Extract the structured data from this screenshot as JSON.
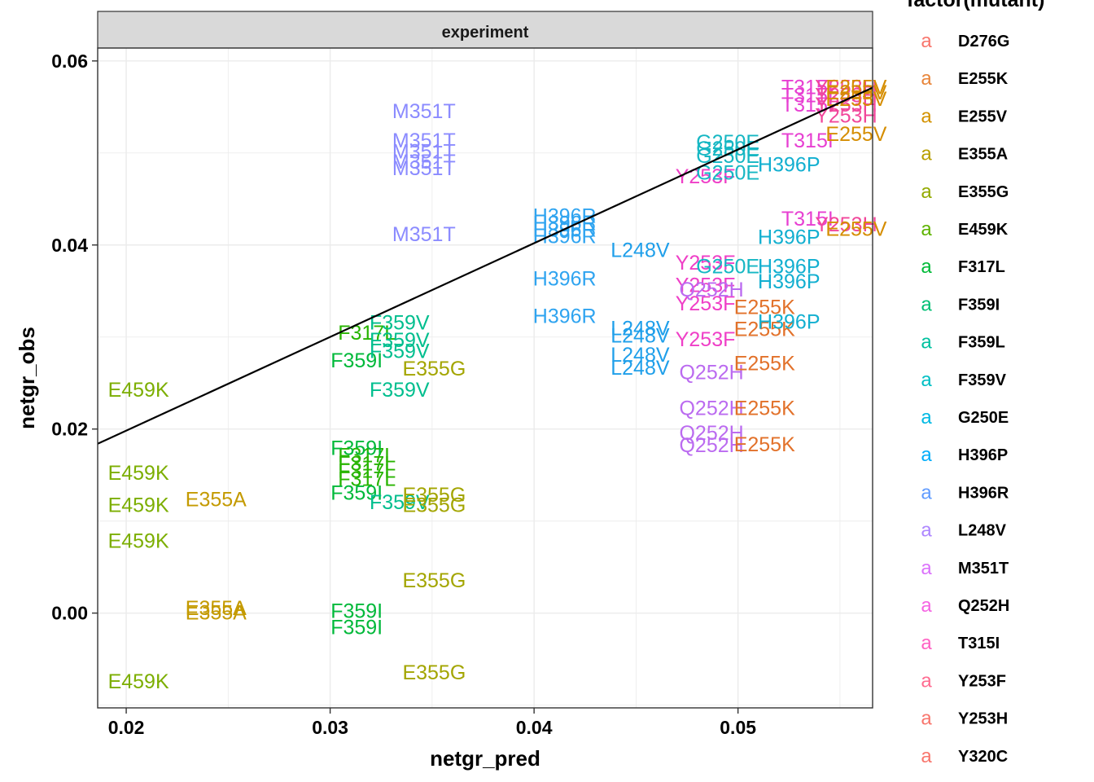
{
  "chart_data": {
    "type": "scatter",
    "label_mode": "text",
    "facet_label": "experiment",
    "xlabel": "netgr_pred",
    "ylabel": "netgr_obs",
    "xlim": [
      0.0186,
      0.0566
    ],
    "ylim": [
      -0.0103,
      0.0614
    ],
    "x_ticks": [
      0.02,
      0.03,
      0.04,
      0.05
    ],
    "x_tick_labels": [
      "0.02",
      "0.03",
      "0.04",
      "0.05"
    ],
    "y_ticks": [
      0.0,
      0.02,
      0.04,
      0.06
    ],
    "y_tick_labels": [
      "0.00",
      "0.02",
      "0.04",
      "0.06"
    ],
    "grid": true,
    "fit_line": {
      "x": [
        0.0186,
        0.0566
      ],
      "y": [
        0.0184,
        0.0571
      ]
    },
    "legend": {
      "title": "factor(mutant)",
      "key_glyph": "a",
      "placement": "right",
      "entries": [
        {
          "name": "D276G",
          "color": "#F8766D"
        },
        {
          "name": "E255K",
          "color": "#E8853A"
        },
        {
          "name": "E255V",
          "color": "#D39200"
        },
        {
          "name": "E355A",
          "color": "#B79F00"
        },
        {
          "name": "E355G",
          "color": "#93AA00"
        },
        {
          "name": "E459K",
          "color": "#5EB300"
        },
        {
          "name": "F317L",
          "color": "#00BA38"
        },
        {
          "name": "F359I",
          "color": "#00BF74"
        },
        {
          "name": "F359L",
          "color": "#00C19F"
        },
        {
          "name": "F359V",
          "color": "#00BFC4"
        },
        {
          "name": "G250E",
          "color": "#00B9E3"
        },
        {
          "name": "H396P",
          "color": "#00ADFA"
        },
        {
          "name": "H396R",
          "color": "#619CFF"
        },
        {
          "name": "L248V",
          "color": "#AE87FF"
        },
        {
          "name": "M351T",
          "color": "#DB72FB"
        },
        {
          "name": "Q252H",
          "color": "#F564E3"
        },
        {
          "name": "T315I",
          "color": "#FF61C3"
        },
        {
          "name": "Y253F",
          "color": "#FF6C91"
        },
        {
          "name": "Y253H",
          "color": "#F8766D"
        },
        {
          "name": "Y320C",
          "color": "#F8766D"
        }
      ]
    },
    "series": [
      {
        "name": "E459K",
        "color": "#7CAE00",
        "points": [
          [
            0.0206,
            0.0243
          ],
          [
            0.0206,
            0.0153
          ],
          [
            0.0206,
            0.0118
          ],
          [
            0.0206,
            0.0079
          ],
          [
            0.0206,
            -0.0074
          ]
        ]
      },
      {
        "name": "E355A",
        "color": "#C49A00",
        "points": [
          [
            0.0244,
            0.0124
          ],
          [
            0.0244,
            0.0006
          ],
          [
            0.0244,
            0.0001
          ]
        ]
      },
      {
        "name": "F317L",
        "color": "#28B400",
        "points": [
          [
            0.0318,
            0.0305
          ],
          [
            0.0318,
            0.0172
          ],
          [
            0.0318,
            0.0163
          ],
          [
            0.0318,
            0.0155
          ],
          [
            0.0318,
            0.0146
          ]
        ]
      },
      {
        "name": "F359I",
        "color": "#00B93A",
        "points": [
          [
            0.0313,
            0.0275
          ],
          [
            0.0313,
            0.018
          ],
          [
            0.0313,
            0.0131
          ],
          [
            0.0313,
            0.0003
          ],
          [
            0.0313,
            -0.0015
          ]
        ]
      },
      {
        "name": "F359V",
        "color": "#00BE8E",
        "points": [
          [
            0.0334,
            0.0316
          ],
          [
            0.0334,
            0.0297
          ],
          [
            0.0334,
            0.0285
          ],
          [
            0.0334,
            0.0243
          ],
          [
            0.0334,
            0.0121
          ]
        ]
      },
      {
        "name": "E355G",
        "color": "#A3A500",
        "points": [
          [
            0.0351,
            0.0266
          ],
          [
            0.0351,
            0.0129
          ],
          [
            0.0351,
            0.0118
          ],
          [
            0.0351,
            0.0036
          ],
          [
            0.0351,
            -0.0064
          ]
        ]
      },
      {
        "name": "M351T",
        "color": "#8B8BFF",
        "points": [
          [
            0.0346,
            0.0546
          ],
          [
            0.0346,
            0.0514
          ],
          [
            0.0346,
            0.0502
          ],
          [
            0.0346,
            0.0491
          ],
          [
            0.0346,
            0.0484
          ],
          [
            0.0346,
            0.0412
          ]
        ]
      },
      {
        "name": "H396R",
        "color": "#2FA4F0",
        "points": [
          [
            0.0415,
            0.0432
          ],
          [
            0.0415,
            0.0424
          ],
          [
            0.0415,
            0.0417
          ],
          [
            0.0415,
            0.041
          ],
          [
            0.0415,
            0.0364
          ],
          [
            0.0415,
            0.0323
          ]
        ]
      },
      {
        "name": "L248V",
        "color": "#1F9FEA",
        "points": [
          [
            0.0452,
            0.0395
          ],
          [
            0.0452,
            0.031
          ],
          [
            0.0452,
            0.0302
          ],
          [
            0.0452,
            0.0281
          ],
          [
            0.0452,
            0.0267
          ]
        ]
      },
      {
        "name": "Y253F",
        "color": "#EF3FC7",
        "points": [
          [
            0.0484,
            0.0475
          ],
          [
            0.0484,
            0.0381
          ],
          [
            0.0484,
            0.0357
          ],
          [
            0.0484,
            0.0337
          ],
          [
            0.0484,
            0.0298
          ]
        ]
      },
      {
        "name": "Q252H",
        "color": "#BB6BF0",
        "points": [
          [
            0.0487,
            0.0352
          ],
          [
            0.0487,
            0.0262
          ],
          [
            0.0487,
            0.0223
          ],
          [
            0.0487,
            0.0196
          ],
          [
            0.0487,
            0.0183
          ]
        ]
      },
      {
        "name": "G250E",
        "color": "#16B7C3",
        "points": [
          [
            0.0495,
            0.0512
          ],
          [
            0.0495,
            0.0505
          ],
          [
            0.0495,
            0.0497
          ],
          [
            0.0495,
            0.0479
          ],
          [
            0.0495,
            0.0377
          ]
        ]
      },
      {
        "name": "E255K",
        "color": "#E2712A",
        "points": [
          [
            0.0513,
            0.0333
          ],
          [
            0.0513,
            0.0309
          ],
          [
            0.0513,
            0.0272
          ],
          [
            0.0513,
            0.0223
          ],
          [
            0.0513,
            0.0184
          ]
        ]
      },
      {
        "name": "H396P",
        "color": "#12AFD0",
        "points": [
          [
            0.0525,
            0.0488
          ],
          [
            0.0525,
            0.0409
          ],
          [
            0.0525,
            0.0377
          ],
          [
            0.0525,
            0.0361
          ],
          [
            0.0525,
            0.0317
          ]
        ]
      },
      {
        "name": "T315I",
        "color": "#E73FD2",
        "points": [
          [
            0.0534,
            0.0572
          ],
          [
            0.0534,
            0.0563
          ],
          [
            0.0534,
            0.0553
          ],
          [
            0.0534,
            0.0514
          ],
          [
            0.0534,
            0.0429
          ]
        ]
      },
      {
        "name": "Y253H",
        "color": "#F1479B",
        "points": [
          [
            0.0553,
            0.0572
          ],
          [
            0.0553,
            0.0563
          ],
          [
            0.0553,
            0.0553
          ],
          [
            0.0553,
            0.0541
          ],
          [
            0.0553,
            0.0423
          ]
        ]
      },
      {
        "name": "E255V",
        "color": "#D58D00",
        "points": [
          [
            0.0558,
            0.0572
          ],
          [
            0.0558,
            0.0566
          ],
          [
            0.0558,
            0.0559
          ],
          [
            0.0558,
            0.0521
          ],
          [
            0.0558,
            0.0418
          ]
        ]
      }
    ]
  }
}
